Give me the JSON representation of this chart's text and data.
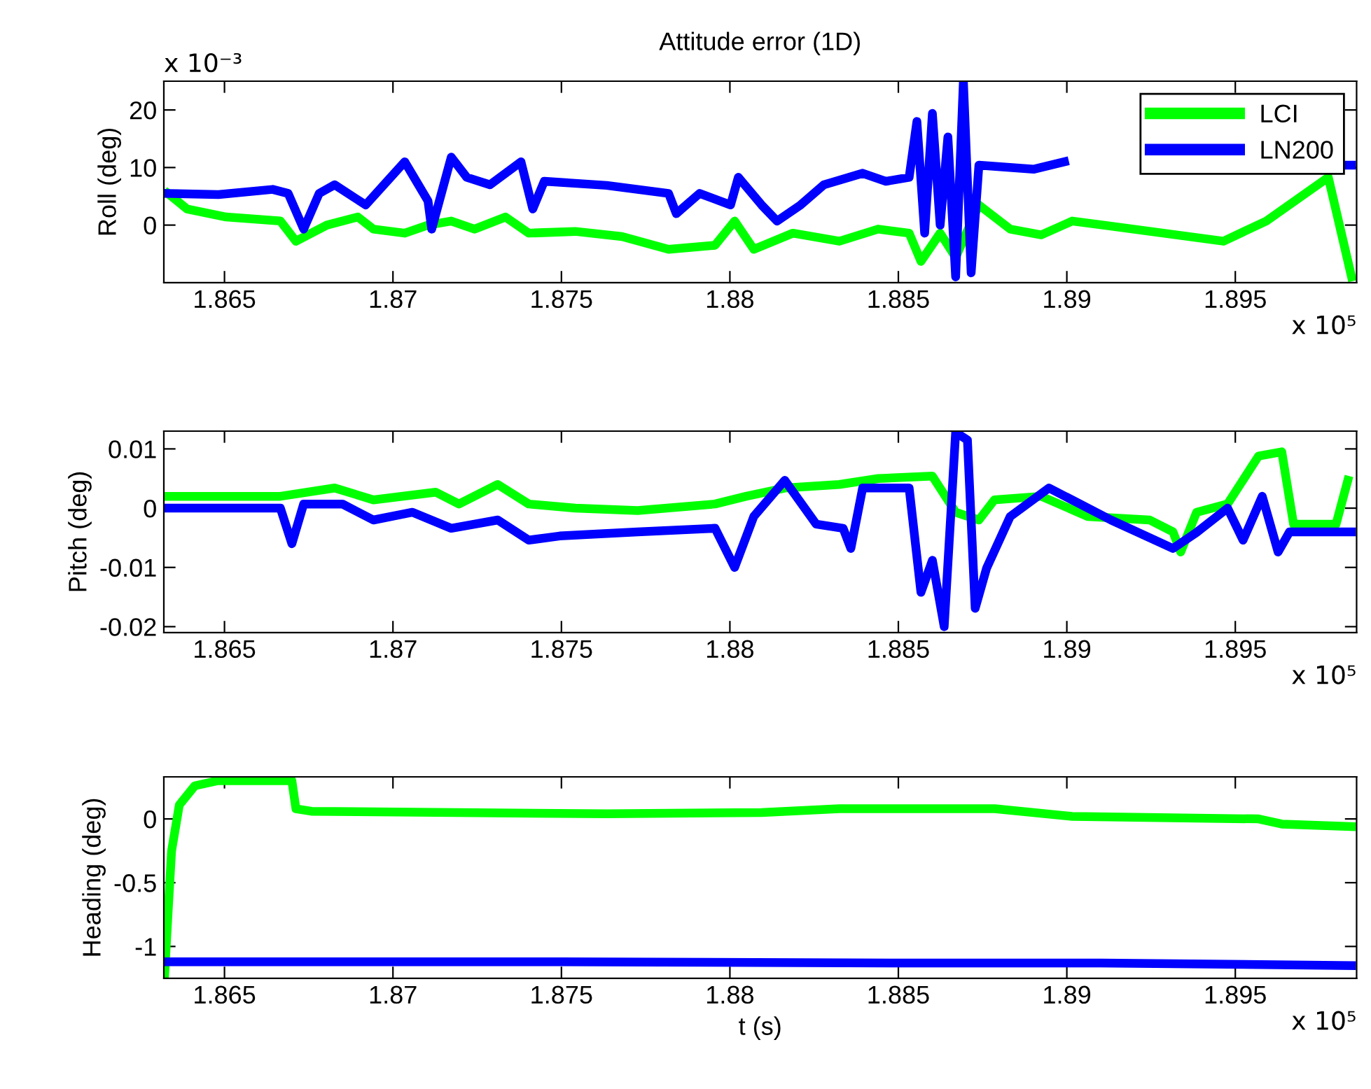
{
  "chart_data": [
    {
      "type": "line",
      "title": "Attitude error (1D)",
      "ylabel": "Roll (deg)",
      "legend": "top right",
      "xlim": [
        1.8632,
        1.8986
      ],
      "ylim": [
        -10,
        25
      ],
      "yticks": [
        0,
        10,
        20
      ],
      "xticks": [
        1.865,
        1.87,
        1.875,
        1.88,
        1.885,
        1.89,
        1.895
      ],
      "annotations": [
        "x 10⁻³",
        "x 10⁵"
      ],
      "series": [
        {
          "name": "LCI",
          "color": "#00ff00",
          "x": [
            1.86332,
            1.86389,
            1.86505,
            1.86666,
            1.86712,
            1.86804,
            1.86896,
            1.86942,
            1.87035,
            1.87104,
            1.87173,
            1.87242,
            1.87334,
            1.87403,
            1.87541,
            1.8768,
            1.87818,
            1.87956,
            1.88014,
            1.88071,
            1.88187,
            1.88325,
            1.8844,
            1.88532,
            1.88567,
            1.88624,
            1.8867,
            1.88739,
            1.88832,
            1.88924,
            1.89016,
            1.89108,
            1.89465,
            1.89592,
            1.89776,
            1.89845
          ],
          "values": [
            5.5,
            2.8,
            1.4,
            0.7,
            -2.8,
            0,
            1.4,
            -0.7,
            -1.4,
            0,
            0.7,
            -0.7,
            1.4,
            -1.4,
            -1.1,
            -2,
            -4.2,
            -3.5,
            0.7,
            -4.2,
            -1.4,
            -2.8,
            -0.7,
            -1.4,
            -6.3,
            -1.4,
            -5.6,
            3.5,
            -0.7,
            -1.7,
            0.7,
            0,
            -2.8,
            0.7,
            8.3,
            -9
          ]
        },
        {
          "name": "LN200",
          "color": "#0000ff",
          "x": [
            1.86332,
            1.86482,
            1.86643,
            1.86689,
            1.86735,
            1.86781,
            1.86827,
            1.86919,
            1.87035,
            1.87104,
            1.87115,
            1.87173,
            1.87219,
            1.87288,
            1.8738,
            1.87415,
            1.87449,
            1.87634,
            1.87818,
            1.87841,
            1.8791,
            1.88002,
            1.88025,
            1.88094,
            1.8814,
            1.8821,
            1.88279,
            1.88394,
            1.88463,
            1.88532,
            1.88555,
            1.88578,
            1.88601,
            1.88624,
            1.88647,
            1.8867,
            1.88693,
            1.88716,
            1.88739,
            1.88901,
            1.88993,
            1.894,
            1.89811,
            1.89845
          ],
          "values": [
            5.5,
            5.3,
            6.2,
            5.5,
            -0.7,
            5.5,
            7,
            3.5,
            11,
            4.2,
            -0.7,
            11.8,
            8.3,
            7,
            11,
            2.8,
            7.6,
            6.9,
            5.5,
            2,
            5.5,
            3.5,
            8.3,
            3.5,
            0.7,
            3.5,
            7,
            9,
            7.6,
            8.3,
            18,
            -1.4,
            19.4,
            0,
            15.3,
            -9,
            25,
            -8.3,
            10.4,
            9.7,
            11,
            null,
            10.4,
            10.4
          ]
        }
      ]
    },
    {
      "type": "line",
      "ylabel": "Pitch (deg)",
      "xlim": [
        1.8632,
        1.8986
      ],
      "ylim": [
        -0.021,
        0.013
      ],
      "yticks": [
        -0.02,
        -0.01,
        0,
        0.01
      ],
      "xticks": [
        1.865,
        1.87,
        1.875,
        1.88,
        1.885,
        1.89,
        1.895
      ],
      "annotations": [
        "x 10⁵"
      ],
      "series": [
        {
          "color": "#00ff00",
          "x": [
            1.86332,
            1.86666,
            1.86827,
            1.86942,
            1.87127,
            1.87196,
            1.87311,
            1.87403,
            1.87541,
            1.87726,
            1.87956,
            1.88048,
            1.88163,
            1.88325,
            1.8844,
            1.88601,
            1.8867,
            1.88739,
            1.88785,
            1.88924,
            1.89062,
            1.89246,
            1.89315,
            1.89338,
            1.89385,
            1.89477,
            1.89569,
            1.89638,
            1.89673,
            1.89799,
            1.89834
          ],
          "values": [
            0.002,
            0.002,
            0.0034,
            0.0014,
            0.0027,
            0.0007,
            0.004,
            0.0007,
            0,
            -0.0004,
            0.0007,
            0.002,
            0.0034,
            0.004,
            0.005,
            0.0054,
            -0.0007,
            -0.002,
            0.0014,
            0.002,
            -0.0014,
            -0.002,
            -0.004,
            -0.0074,
            -0.0007,
            0.0007,
            0.0088,
            0.0095,
            -0.0027,
            -0.0027,
            0.0047
          ]
        },
        {
          "color": "#0000ff",
          "x": [
            1.86332,
            1.86666,
            1.867,
            1.86735,
            1.8685,
            1.86942,
            1.87058,
            1.87173,
            1.87311,
            1.87403,
            1.87495,
            1.87726,
            1.87956,
            1.88014,
            1.88071,
            1.88163,
            1.88256,
            1.88336,
            1.88359,
            1.88394,
            1.88532,
            1.88567,
            1.88601,
            1.88636,
            1.8867,
            1.88705,
            1.88728,
            1.88762,
            1.88832,
            1.88947,
            1.89131,
            1.89315,
            1.89385,
            1.89477,
            1.89523,
            1.8958,
            1.89627,
            1.89661,
            1.89845
          ],
          "values": [
            0,
            0,
            -0.006,
            0.0007,
            0.0007,
            -0.002,
            -0.0007,
            -0.0034,
            -0.002,
            -0.0054,
            -0.0047,
            -0.004,
            -0.0034,
            -0.01,
            -0.0014,
            0.0047,
            -0.0027,
            -0.0034,
            -0.0068,
            0.0034,
            0.0034,
            -0.0142,
            -0.0088,
            -0.02,
            0.0128,
            0.0115,
            -0.0169,
            -0.0101,
            -0.0014,
            0.0034,
            -0.002,
            -0.0068,
            -0.0041,
            0,
            -0.0054,
            0.002,
            -0.0074,
            -0.004,
            -0.004
          ]
        }
      ]
    },
    {
      "type": "line",
      "ylabel": "Heading (deg)",
      "xlabel": "t (s)",
      "xlim": [
        1.8632,
        1.8986
      ],
      "ylim": [
        -1.25,
        0.33
      ],
      "yticks": [
        -1,
        -0.5,
        0
      ],
      "xticks": [
        1.865,
        1.87,
        1.875,
        1.88,
        1.885,
        1.89,
        1.895
      ],
      "annotations": [
        "x 10⁵"
      ],
      "series": [
        {
          "color": "#00ff00",
          "x": [
            1.86322,
            1.86332,
            1.86343,
            1.86366,
            1.86412,
            1.86481,
            1.867,
            1.86712,
            1.86758,
            1.87634,
            1.88094,
            1.88325,
            1.88786,
            1.89016,
            1.89569,
            1.89638,
            1.89845
          ],
          "values": [
            -1.24,
            -0.76,
            -0.25,
            0.11,
            0.26,
            0.3,
            0.3,
            0.08,
            0.06,
            0.04,
            0.05,
            0.08,
            0.08,
            0.02,
            0,
            -0.04,
            -0.06
          ]
        },
        {
          "color": "#0000ff",
          "x": [
            1.86325,
            1.875,
            1.885,
            1.891,
            1.89845
          ],
          "values": [
            -1.12,
            -1.12,
            -1.13,
            -1.13,
            -1.15
          ]
        }
      ]
    }
  ]
}
